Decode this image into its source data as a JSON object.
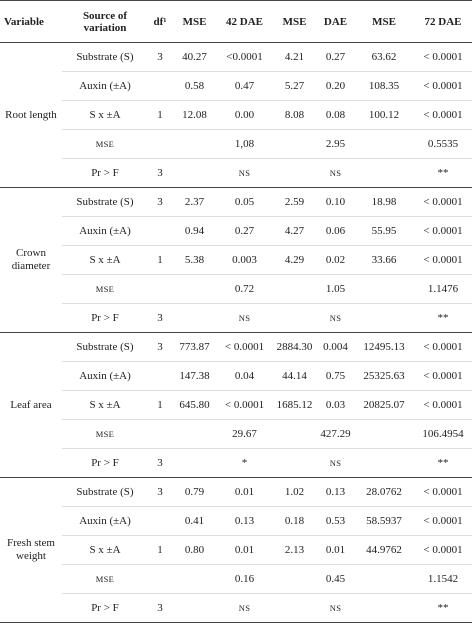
{
  "table": {
    "header": [
      "Variable",
      "Source of variation",
      "df¹",
      "MSE",
      "42 DAE",
      "MSE",
      "DAE",
      "MSE",
      "72 DAE"
    ],
    "groups": [
      {
        "variable": "Root length",
        "rows": [
          [
            "Substrate (S)",
            "3",
            "40.27",
            "<0.0001",
            "4.21",
            "0.27",
            "63.62",
            "< 0.0001"
          ],
          [
            "Auxin (±A)",
            null,
            "0.58",
            "0.47",
            "5.27",
            "0.20",
            "108.35",
            "< 0.0001"
          ],
          [
            "S x ±A",
            "1",
            "12.08",
            "0.00",
            "8.08",
            "0.08",
            "100.12",
            "< 0.0001"
          ],
          [
            "MSE",
            null,
            null,
            "1,08",
            null,
            "2.95",
            null,
            "0.5535"
          ],
          [
            "Pr > F",
            "3",
            null,
            "NS",
            null,
            "NS",
            null,
            "**"
          ]
        ]
      },
      {
        "variable": "Crown diameter",
        "rows": [
          [
            "Substrate (S)",
            "3",
            "2.37",
            "0.05",
            "2.59",
            "0.10",
            "18.98",
            "< 0.0001"
          ],
          [
            "Auxin (±A)",
            null,
            "0.94",
            "0.27",
            "4.27",
            "0.06",
            "55.95",
            "< 0.0001"
          ],
          [
            "S x ±A",
            "1",
            "5.38",
            "0.003",
            "4.29",
            "0.02",
            "33.66",
            "< 0.0001"
          ],
          [
            "MSE",
            null,
            null,
            "0.72",
            null,
            "1.05",
            null,
            "1.1476"
          ],
          [
            "Pr > F",
            "3",
            null,
            "NS",
            null,
            "NS",
            null,
            "**"
          ]
        ]
      },
      {
        "variable": "Leaf area",
        "rows": [
          [
            "Substrate (S)",
            "3",
            "773.87",
            "< 0.0001",
            "2884.30",
            "0.004",
            "12495.13",
            "< 0.0001"
          ],
          [
            "Auxin (±A)",
            null,
            "147.38",
            "0.04",
            "44.14",
            "0.75",
            "25325.63",
            "< 0.0001"
          ],
          [
            "S x ±A",
            "1",
            "645.80",
            "< 0.0001",
            "1685.12",
            "0.03",
            "20825.07",
            "< 0.0001"
          ],
          [
            "MSE",
            null,
            null,
            "29.67",
            null,
            "427.29",
            null,
            "106.4954"
          ],
          [
            "Pr > F",
            "3",
            null,
            "*",
            null,
            "NS",
            null,
            "**"
          ]
        ]
      },
      {
        "variable": "Fresh stem weight",
        "rows": [
          [
            "Substrate (S)",
            "3",
            "0.79",
            "0.01",
            "1.02",
            "0.13",
            "28.0762",
            "< 0.0001"
          ],
          [
            "Auxin (±A)",
            null,
            "0.41",
            "0.13",
            "0.18",
            "0.53",
            "58.5937",
            "< 0.0001"
          ],
          [
            "S x ±A",
            "1",
            "0.80",
            "0.01",
            "2.13",
            "0.01",
            "44.9762",
            "< 0.0001"
          ],
          [
            "MSE",
            null,
            null,
            "0.16",
            null,
            "0.45",
            null,
            "1.1542"
          ],
          [
            "Pr > F",
            "3",
            null,
            "NS",
            null,
            "NS",
            null,
            "**"
          ]
        ]
      }
    ]
  }
}
